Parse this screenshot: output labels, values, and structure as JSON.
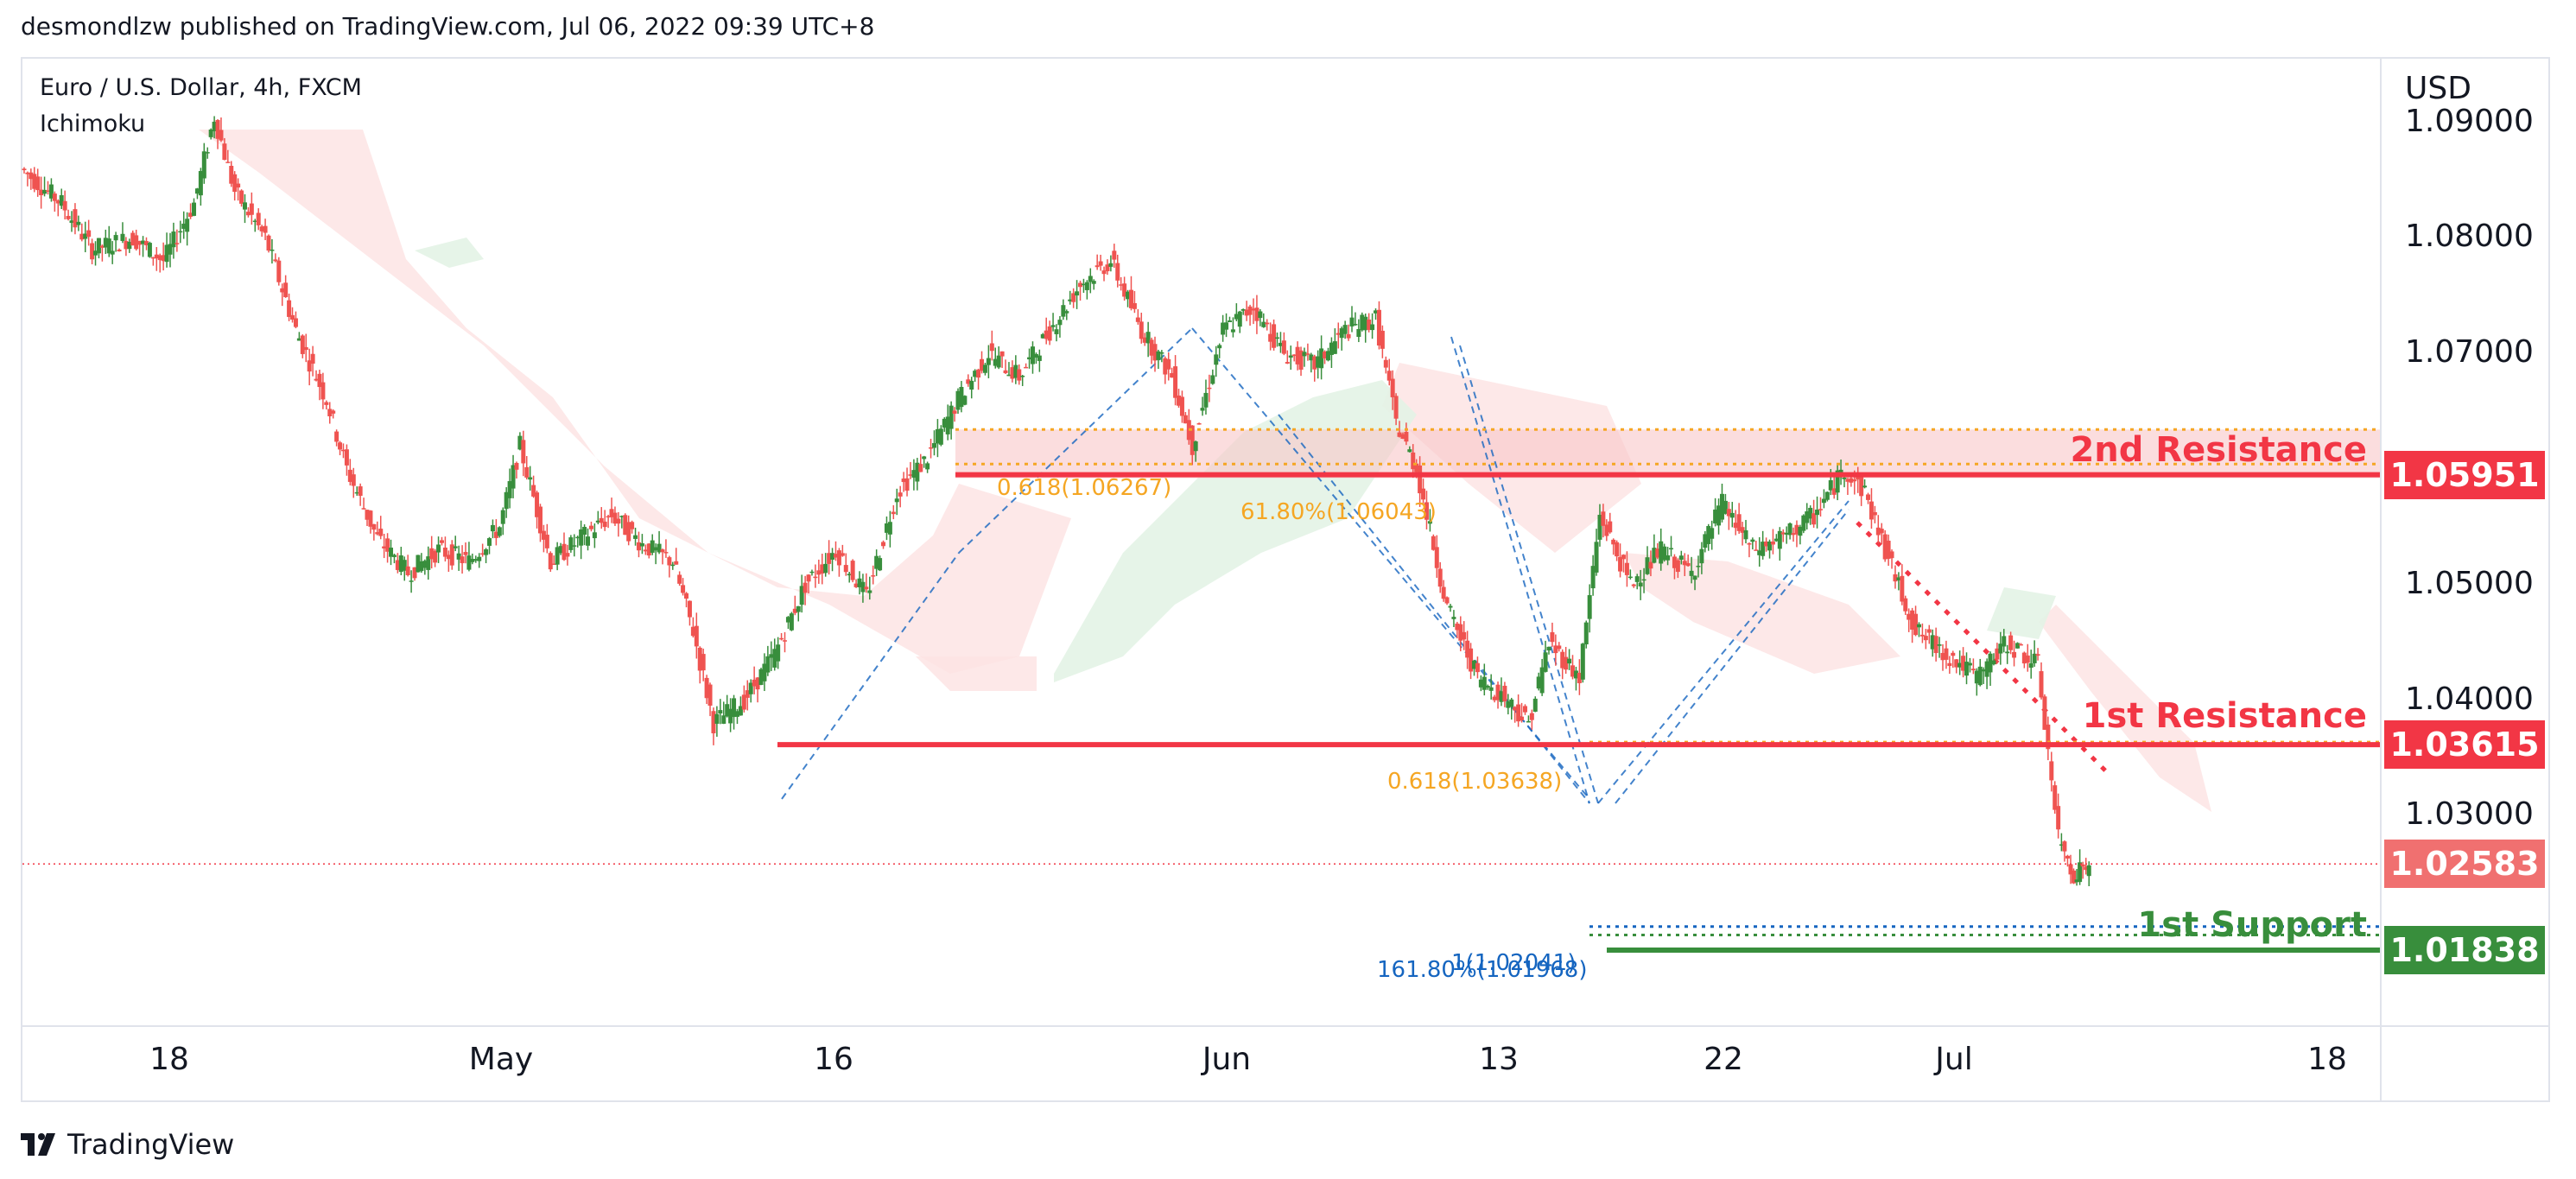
{
  "header": {
    "published": "desmondlzw published on TradingView.com, Jul 06, 2022 09:39 UTC+8"
  },
  "legend": {
    "symbol": "Euro / U.S. Dollar, 4h, FXCM",
    "indicator": "Ichimoku"
  },
  "footer": {
    "logo_text": "TradingView"
  },
  "colors": {
    "up": "#26a69a",
    "candle_up": "#388e3c",
    "candle_down": "#ef5350",
    "resistance": "#f23645",
    "support": "#388e3c",
    "fib_orange": "#f5a623",
    "fib_blue": "#1565c0",
    "cloud_red": "#fde2e2",
    "cloud_green": "#e3f3e6",
    "price_tag_current": "#f07070"
  },
  "chart_data": {
    "type": "candlestick",
    "title": "Euro / U.S. Dollar, 4h, FXCM",
    "currency": "USD",
    "y_axis": {
      "range": [
        1.0118,
        1.0955
      ],
      "ticks": [
        "1.09000",
        "1.08000",
        "1.07000",
        "1.05000",
        "1.04000",
        "1.03000"
      ]
    },
    "x_axis": {
      "ticks": [
        "18",
        "May",
        "16",
        "Jun",
        "13",
        "22",
        "Jul",
        "18"
      ]
    },
    "levels": [
      {
        "name": "2nd Resistance",
        "price": 1.05951,
        "label": "1.05951",
        "kind": "resistance"
      },
      {
        "name": "1st Resistance",
        "price": 1.03615,
        "label": "1.03615",
        "kind": "resistance"
      },
      {
        "name": "1st Support",
        "price": 1.01838,
        "label": "1.01838",
        "kind": "support"
      }
    ],
    "current_price": {
      "price": 1.02583,
      "label": "1.02583"
    },
    "fib_annotations": [
      {
        "text": "0.618(1.06267)",
        "price": 1.06267,
        "color": "orange"
      },
      {
        "text": "61.80%(1.06043)",
        "price": 1.06043,
        "color": "orange"
      },
      {
        "text": "0.618(1.03638)",
        "price": 1.03638,
        "color": "orange"
      },
      {
        "text": "1(1.02041)",
        "price": 1.02041,
        "color": "blue"
      },
      {
        "text": "161.80%(1.01968)",
        "price": 1.01968,
        "color": "blue"
      }
    ],
    "price_path": [
      [
        0,
        1.086
      ],
      [
        8,
        1.083
      ],
      [
        14,
        1.079
      ],
      [
        22,
        1.08
      ],
      [
        28,
        1.078
      ],
      [
        34,
        1.083
      ],
      [
        38,
        1.0905
      ],
      [
        42,
        1.084
      ],
      [
        48,
        1.08
      ],
      [
        54,
        1.072
      ],
      [
        60,
        1.066
      ],
      [
        64,
        1.06
      ],
      [
        70,
        1.054
      ],
      [
        76,
        1.051
      ],
      [
        82,
        1.053
      ],
      [
        88,
        1.052
      ],
      [
        94,
        1.055
      ],
      [
        98,
        1.062
      ],
      [
        104,
        1.052
      ],
      [
        110,
        1.054
      ],
      [
        116,
        1.056
      ],
      [
        122,
        1.0535
      ],
      [
        128,
        1.052
      ],
      [
        132,
        1.046
      ],
      [
        136,
        1.038
      ],
      [
        142,
        1.04
      ],
      [
        148,
        1.044
      ],
      [
        154,
        1.05
      ],
      [
        160,
        1.053
      ],
      [
        166,
        1.049
      ],
      [
        172,
        1.058
      ],
      [
        178,
        1.061
      ],
      [
        184,
        1.066
      ],
      [
        190,
        1.07
      ],
      [
        196,
        1.068
      ],
      [
        202,
        1.072
      ],
      [
        208,
        1.076
      ],
      [
        214,
        1.078
      ],
      [
        220,
        1.072
      ],
      [
        226,
        1.068
      ],
      [
        230,
        1.062
      ],
      [
        236,
        1.072
      ],
      [
        242,
        1.074
      ],
      [
        248,
        1.07
      ],
      [
        254,
        1.069
      ],
      [
        260,
        1.072
      ],
      [
        266,
        1.073
      ],
      [
        270,
        1.064
      ],
      [
        274,
        1.06
      ],
      [
        280,
        1.048
      ],
      [
        286,
        1.042
      ],
      [
        292,
        1.04
      ],
      [
        296,
        1.038
      ],
      [
        300,
        1.045
      ],
      [
        306,
        1.042
      ],
      [
        310,
        1.056
      ],
      [
        316,
        1.05
      ],
      [
        322,
        1.053
      ],
      [
        328,
        1.051
      ],
      [
        334,
        1.057
      ],
      [
        340,
        1.053
      ],
      [
        346,
        1.054
      ],
      [
        352,
        1.056
      ],
      [
        358,
        1.06
      ],
      [
        362,
        1.058
      ],
      [
        366,
        1.053
      ],
      [
        372,
        1.046
      ],
      [
        378,
        1.044
      ],
      [
        384,
        1.042
      ],
      [
        390,
        1.045
      ],
      [
        396,
        1.043
      ],
      [
        400,
        1.028
      ],
      [
        403,
        1.025
      ],
      [
        406,
        1.0258
      ]
    ],
    "price_path_x_range": [
      0,
      406
    ]
  }
}
